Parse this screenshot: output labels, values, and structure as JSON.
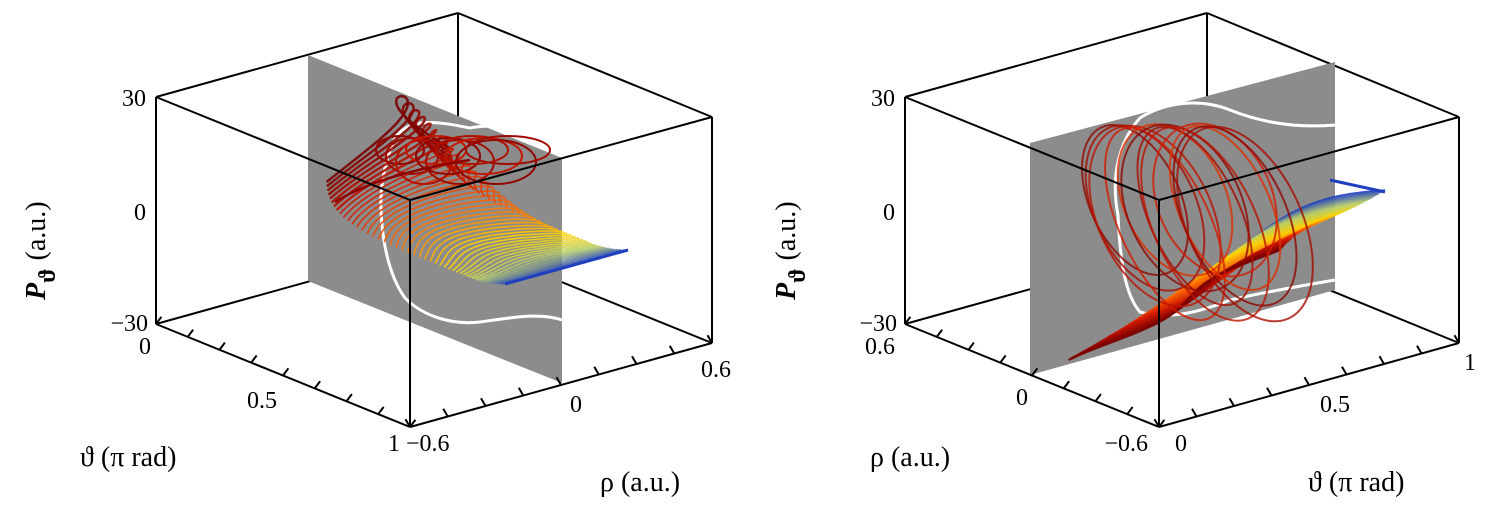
{
  "chart_data": [
    {
      "type": "line3d",
      "panel": "left",
      "axes": {
        "x": {
          "label": "ρ (a.u.)",
          "range": [
            -0.6,
            0.6
          ],
          "ticks": [
            "−0.6",
            "0",
            "0.6"
          ]
        },
        "y": {
          "label": "ϑ (π rad)",
          "range": [
            0,
            1
          ],
          "ticks": [
            "0",
            "0.5",
            "1"
          ]
        },
        "z": {
          "label_symbol": "P",
          "label_sub": "ϑ",
          "label_unit": "(a.u.)",
          "range": [
            -30,
            30
          ],
          "ticks": [
            "30",
            "0",
            "−30"
          ]
        }
      },
      "plane": {
        "at": "ρ = 0",
        "color": "#8c8c8c"
      },
      "section_curve_color": "#ffffff",
      "trajectory_colormap": [
        "#7a0000",
        "#d21a00",
        "#ff6a00",
        "#ffd200",
        "#b9d06a",
        "#2040c0"
      ],
      "grid": false
    },
    {
      "type": "line3d",
      "panel": "right",
      "axes": {
        "x": {
          "label": "ρ (a.u.)",
          "range": [
            -0.6,
            0.6
          ],
          "ticks": [
            "−0.6",
            "0",
            "0.6"
          ]
        },
        "y": {
          "label": "ϑ (π rad)",
          "range": [
            0,
            1
          ],
          "ticks": [
            "0",
            "0.5",
            "1"
          ]
        },
        "z": {
          "label_symbol": "P",
          "label_sub": "ϑ",
          "label_unit": "(a.u.)",
          "range": [
            -30,
            30
          ],
          "ticks": [
            "30",
            "0",
            "−30"
          ]
        }
      },
      "plane": {
        "at": "ρ = 0",
        "color": "#8c8c8c"
      },
      "section_curve_color": "#ffffff",
      "trajectory_colormap": [
        "#7a0000",
        "#d21a00",
        "#ff6a00",
        "#ffd200",
        "#b9d06a",
        "#2040c0"
      ],
      "grid": false
    }
  ]
}
